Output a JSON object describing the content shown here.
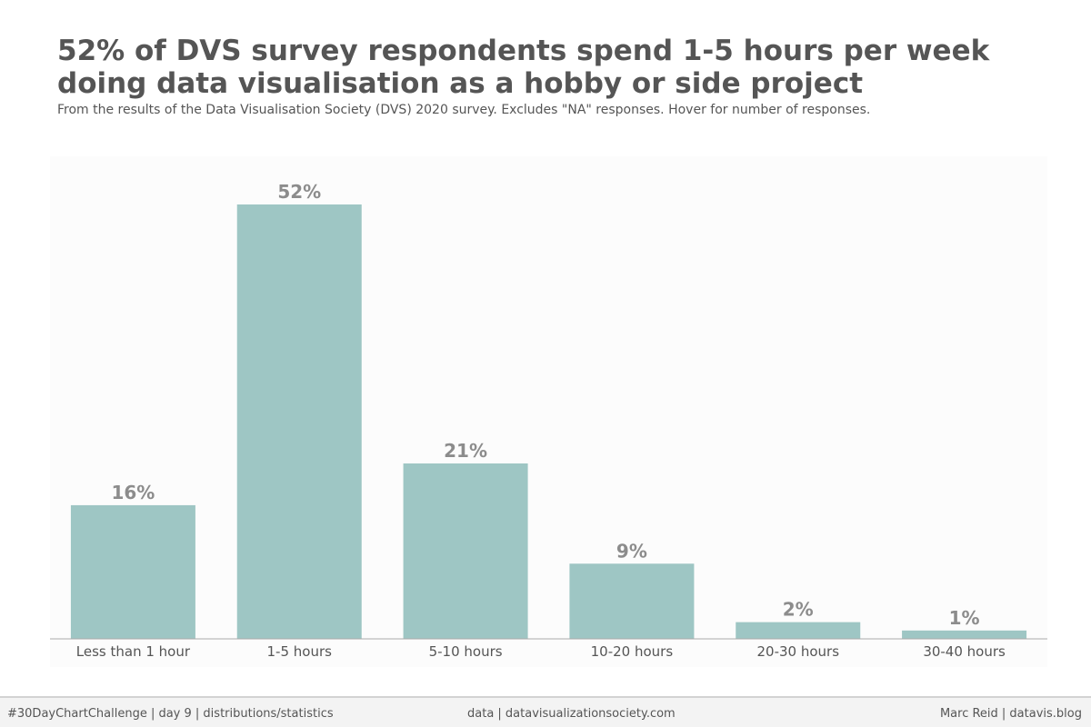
{
  "chart": {
    "title": "52% of DVS survey respondents spend 1-5 hours per week doing data visualisation as a hobby or side project",
    "subtitle": "From the results of the Data Visualisation Society (DVS) 2020 survey. Excludes \"NA\" responses. Hover for number of responses."
  },
  "chart_data": {
    "type": "bar",
    "categories": [
      "Less than 1 hour",
      "1-5 hours",
      "5-10 hours",
      "10-20 hours",
      "20-30 hours",
      "30-40 hours"
    ],
    "values": [
      16,
      52,
      21,
      9,
      2,
      1
    ],
    "data_labels": [
      "16%",
      "52%",
      "21%",
      "9%",
      "2%",
      "1%"
    ],
    "ylim": [
      0,
      52
    ],
    "xlabel": "",
    "ylabel": "",
    "grid": false,
    "legend": "none",
    "colors": {
      "bar": "#9ec6c4",
      "label": "#8c8c8c",
      "tick": "#555555",
      "axis": "#aaaaaa",
      "panel": "#fcfcfc"
    }
  },
  "footer": {
    "left": "#30DayChartChallenge | day 9 | distributions/statistics",
    "center": "data | datavisualizationsociety.com",
    "right": "Marc Reid | datavis.blog"
  }
}
